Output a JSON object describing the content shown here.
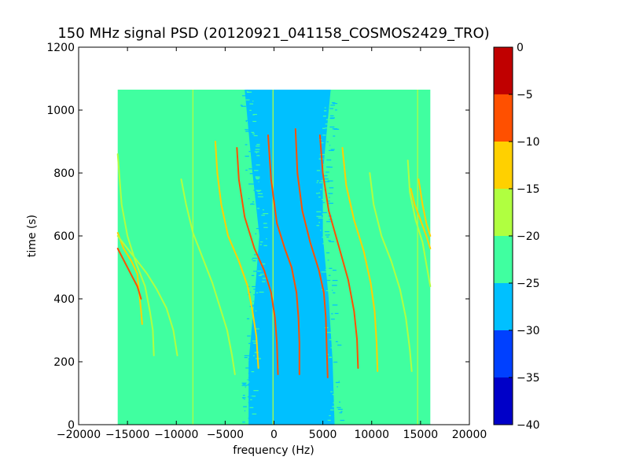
{
  "chart_data": {
    "type": "heatmap",
    "title": "150 MHz signal PSD (20120921_041158_COSMOS2429_TRO)",
    "xlabel": "frequency (Hz)",
    "ylabel": "time (s)",
    "xlim": [
      -20000,
      20000
    ],
    "ylim": [
      0,
      1200
    ],
    "xticks": [
      -20000,
      -15000,
      -10000,
      -5000,
      0,
      5000,
      10000,
      15000,
      20000
    ],
    "xtick_labels": [
      "−20000",
      "−15000",
      "−10000",
      "−5000",
      "0",
      "5000",
      "10000",
      "15000",
      "20000"
    ],
    "yticks": [
      0,
      200,
      400,
      600,
      800,
      1000,
      1200
    ],
    "ytick_labels": [
      "0",
      "200",
      "400",
      "600",
      "800",
      "1000",
      "1200"
    ],
    "data_extent": {
      "freq_min": -16000,
      "freq_max": 16000,
      "time_min": 0,
      "time_max": 1065
    },
    "grid": false,
    "colorbar": {
      "position": "right",
      "range": [
        -40,
        0
      ],
      "ticks": [
        0,
        -5,
        -10,
        -15,
        -20,
        -25,
        -30,
        -35,
        -40
      ],
      "tick_labels": [
        "0",
        "−5",
        "−10",
        "−15",
        "−20",
        "−25",
        "−30",
        "−35",
        "−40"
      ],
      "levels": [
        {
          "range": [
            -40,
            -35
          ],
          "color": "#0000c8"
        },
        {
          "range": [
            -35,
            -30
          ],
          "color": "#0040ff"
        },
        {
          "range": [
            -30,
            -25
          ],
          "color": "#00c0ff"
        },
        {
          "range": [
            -25,
            -20
          ],
          "color": "#40ffa0"
        },
        {
          "range": [
            -20,
            -15
          ],
          "color": "#b0ff40"
        },
        {
          "range": [
            -15,
            -10
          ],
          "color": "#ffd000"
        },
        {
          "range": [
            -10,
            -5
          ],
          "color": "#ff5000"
        },
        {
          "range": [
            -5,
            0
          ],
          "color": "#c00000"
        }
      ]
    },
    "background_level_color": "#40ffa0",
    "low_power_band_color": "#00c0ff",
    "low_power_band": [
      {
        "time": 0,
        "f_left": -2600,
        "f_right": 6200
      },
      {
        "time": 200,
        "f_left": -2600,
        "f_right": 6000
      },
      {
        "time": 400,
        "f_left": -2000,
        "f_right": 5600
      },
      {
        "time": 600,
        "f_left": -1500,
        "f_right": 5000
      },
      {
        "time": 800,
        "f_left": -2200,
        "f_right": 5000
      },
      {
        "time": 1065,
        "f_left": -3000,
        "f_right": 5800
      }
    ],
    "vertical_lines": [
      {
        "freq": -8300,
        "time_from": 0,
        "time_to": 1065,
        "color": "#b0ff40"
      },
      {
        "freq": -100,
        "time_from": 0,
        "time_to": 1065,
        "color": "#b0ff40"
      },
      {
        "freq": 14700,
        "time_from": 0,
        "time_to": 1065,
        "color": "#b0ff40"
      }
    ],
    "series": [
      {
        "color": "#b0ff40",
        "points": [
          [
            -16000,
            860
          ],
          [
            -15600,
            700
          ],
          [
            -15000,
            600
          ],
          [
            -14200,
            520
          ],
          [
            -13200,
            440
          ],
          [
            -12700,
            360
          ],
          [
            -12400,
            300
          ],
          [
            -12300,
            220
          ]
        ]
      },
      {
        "color": "#ffd000",
        "points": [
          [
            -16000,
            610
          ],
          [
            -15400,
            560
          ],
          [
            -14600,
            520
          ],
          [
            -14000,
            480
          ],
          [
            -13800,
            420
          ],
          [
            -13600,
            360
          ],
          [
            -13500,
            320
          ]
        ]
      },
      {
        "color": "#ff5000",
        "points": [
          [
            -16000,
            560
          ],
          [
            -15500,
            530
          ],
          [
            -15000,
            500
          ],
          [
            -14500,
            470
          ],
          [
            -14000,
            440
          ],
          [
            -13600,
            400
          ]
        ]
      },
      {
        "color": "#b0ff40",
        "points": [
          [
            -16000,
            600
          ],
          [
            -15000,
            560
          ],
          [
            -14000,
            520
          ],
          [
            -13000,
            480
          ],
          [
            -12000,
            430
          ],
          [
            -11000,
            370
          ],
          [
            -10300,
            300
          ],
          [
            -9900,
            220
          ]
        ]
      },
      {
        "color": "#b0ff40",
        "points": [
          [
            -9500,
            780
          ],
          [
            -9000,
            700
          ],
          [
            -8300,
            610
          ],
          [
            -7300,
            530
          ],
          [
            -6300,
            450
          ],
          [
            -5500,
            370
          ],
          [
            -4800,
            300
          ],
          [
            -4300,
            220
          ],
          [
            -4000,
            160
          ]
        ]
      },
      {
        "color": "#ffd000",
        "points": [
          [
            -6000,
            900
          ],
          [
            -5800,
            800
          ],
          [
            -5400,
            700
          ],
          [
            -4700,
            600
          ],
          [
            -3600,
            520
          ],
          [
            -2700,
            440
          ],
          [
            -2200,
            360
          ],
          [
            -1800,
            280
          ],
          [
            -1600,
            180
          ]
        ]
      },
      {
        "color": "#ff5000",
        "points": [
          [
            -3800,
            880
          ],
          [
            -3600,
            780
          ],
          [
            -3000,
            660
          ],
          [
            -2000,
            560
          ],
          [
            -1000,
            490
          ],
          [
            -300,
            420
          ],
          [
            100,
            340
          ],
          [
            300,
            260
          ],
          [
            400,
            160
          ]
        ]
      },
      {
        "color": "#ff5000",
        "points": [
          [
            -600,
            920
          ],
          [
            -300,
            780
          ],
          [
            300,
            640
          ],
          [
            1100,
            560
          ],
          [
            1800,
            500
          ],
          [
            2300,
            420
          ],
          [
            2500,
            340
          ],
          [
            2600,
            260
          ],
          [
            2600,
            160
          ]
        ]
      },
      {
        "color": "#ff5000",
        "points": [
          [
            2200,
            940
          ],
          [
            2400,
            800
          ],
          [
            2900,
            680
          ],
          [
            3700,
            580
          ],
          [
            4600,
            490
          ],
          [
            5100,
            420
          ],
          [
            5300,
            340
          ],
          [
            5400,
            240
          ],
          [
            5500,
            150
          ]
        ]
      },
      {
        "color": "#ff5000",
        "points": [
          [
            4700,
            920
          ],
          [
            5000,
            800
          ],
          [
            5600,
            680
          ],
          [
            6700,
            560
          ],
          [
            7600,
            460
          ],
          [
            8200,
            360
          ],
          [
            8500,
            270
          ],
          [
            8600,
            180
          ]
        ]
      },
      {
        "color": "#ffd000",
        "points": [
          [
            7000,
            880
          ],
          [
            7400,
            760
          ],
          [
            8200,
            650
          ],
          [
            9200,
            550
          ],
          [
            9900,
            450
          ],
          [
            10300,
            360
          ],
          [
            10500,
            260
          ],
          [
            10600,
            170
          ]
        ]
      },
      {
        "color": "#b0ff40",
        "points": [
          [
            9800,
            800
          ],
          [
            10200,
            700
          ],
          [
            11000,
            600
          ],
          [
            12000,
            520
          ],
          [
            12900,
            430
          ],
          [
            13500,
            340
          ],
          [
            13900,
            240
          ],
          [
            14100,
            170
          ]
        ]
      },
      {
        "color": "#b0ff40",
        "points": [
          [
            13700,
            840
          ],
          [
            13900,
            740
          ],
          [
            14500,
            650
          ],
          [
            15200,
            580
          ],
          [
            15600,
            510
          ],
          [
            16000,
            440
          ]
        ]
      },
      {
        "color": "#ffd000",
        "points": [
          [
            14000,
            750
          ],
          [
            14400,
            700
          ],
          [
            15000,
            650
          ],
          [
            15600,
            600
          ],
          [
            16000,
            560
          ]
        ]
      },
      {
        "color": "#ffd000",
        "points": [
          [
            14800,
            780
          ],
          [
            15200,
            700
          ],
          [
            15600,
            640
          ],
          [
            16000,
            600
          ]
        ]
      }
    ]
  }
}
